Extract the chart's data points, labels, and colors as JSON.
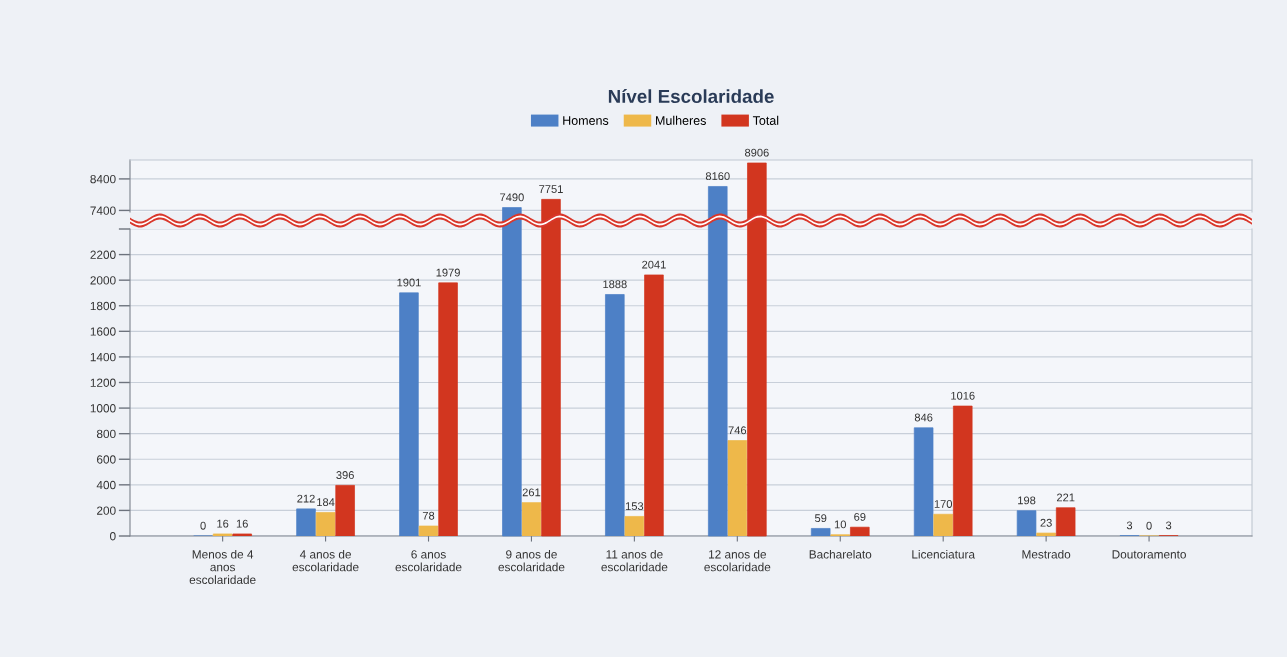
{
  "chart_data": [
    {
      "type": "bar",
      "title": "Nível Escolaridade",
      "categories": [
        null,
        null,
        null,
        null,
        null,
        null,
        null,
        null,
        null,
        null
      ],
      "series": [
        {
          "name": "Homens",
          "color": "#4d80c6",
          "values": [
            null,
            null,
            null,
            7490,
            null,
            8160,
            null,
            null,
            null,
            null
          ],
          "value_labels": [
            null,
            null,
            null,
            "7490",
            null,
            "8160",
            null,
            null,
            null,
            null
          ]
        },
        {
          "name": "Mulheres",
          "color": "#eeb84a",
          "values": [
            null,
            null,
            null,
            null,
            null,
            null,
            null,
            null,
            null,
            null
          ]
        },
        {
          "name": "Total",
          "color": "#d2361f",
          "values": [
            null,
            null,
            null,
            7751,
            null,
            8906,
            null,
            null,
            null,
            null
          ],
          "value_labels": [
            null,
            null,
            null,
            "7751",
            null,
            "8906",
            null,
            null,
            null,
            null
          ]
        }
      ],
      "ylim": [
        7350,
        9000
      ],
      "yticks": [
        7400,
        8400
      ],
      "tick_labels": "y",
      "grid": "y",
      "legend": "top"
    },
    {
      "type": "bar",
      "categories": [
        "Menos de 4 anos escolaridade",
        "4 anos de escolaridade",
        "6 anos escolaridade",
        "9 anos de escolaridade",
        "11 anos de escolaridade",
        "12 anos de escolaridade",
        "Bacharelato",
        "Licenciatura",
        "Mestrado",
        "Doutoramento"
      ],
      "series": [
        {
          "color": "#4d80c6",
          "values": [
            0,
            212,
            1901,
            null,
            1888,
            null,
            59,
            846,
            198,
            3
          ],
          "value_labels": [
            "0",
            "212",
            "1901",
            null,
            "1888",
            null,
            "59",
            "846",
            "198",
            "3"
          ]
        },
        {
          "color": "#eeb84a",
          "values": [
            16,
            184,
            78,
            261,
            153,
            746,
            10,
            170,
            23,
            0
          ],
          "value_labels": [
            "16",
            "184",
            "78",
            "261",
            "153",
            "746",
            "10",
            "170",
            "23",
            "0"
          ]
        },
        {
          "color": "#d2361f",
          "values": [
            16,
            396,
            1979,
            null,
            2041,
            null,
            69,
            1016,
            221,
            3
          ],
          "value_labels": [
            "16",
            "396",
            "1979",
            null,
            "2041",
            null,
            "69",
            "1016",
            "221",
            "3"
          ]
        }
      ],
      "ylim": [
        0,
        2400
      ],
      "yticks": [
        0,
        200,
        400,
        600,
        800,
        1000,
        1200,
        1400,
        1600,
        1800,
        2000,
        2200,
        {
          "value": 2400,
          "label": null
        }
      ],
      "grid": "y"
    }
  ]
}
